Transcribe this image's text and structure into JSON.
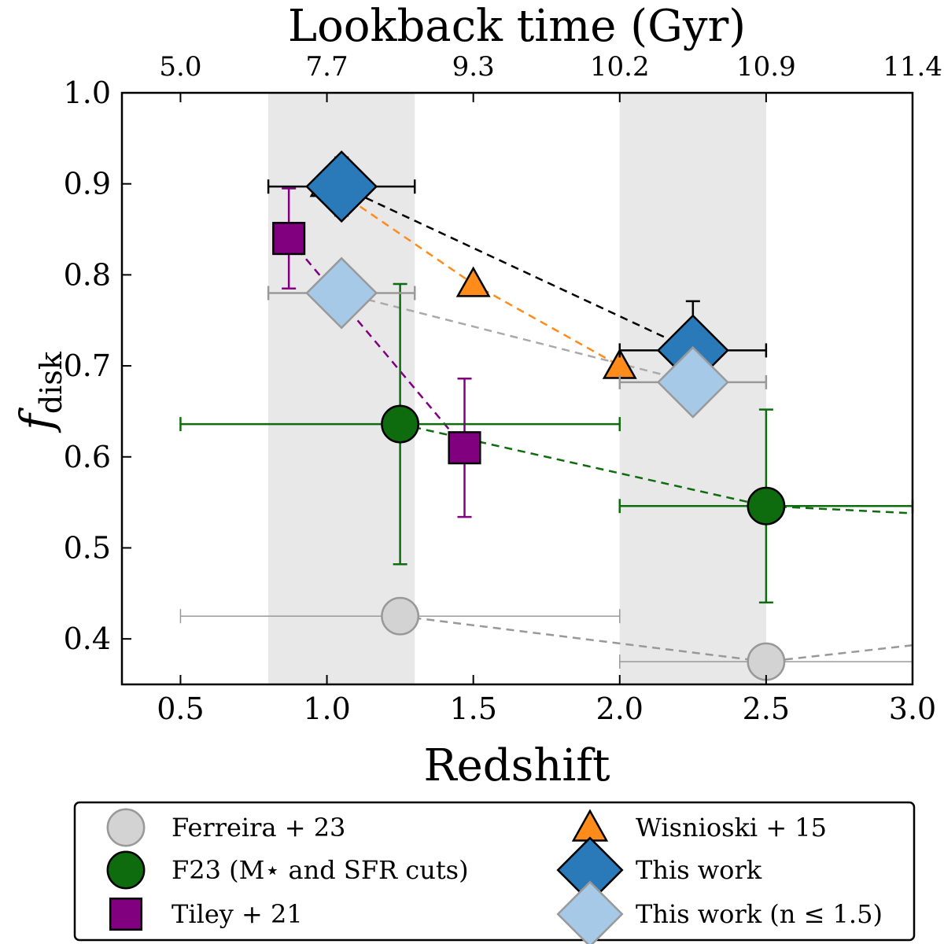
{
  "chart_data": {
    "type": "scatter",
    "xlabel": "Redshift",
    "ylabel_main": "f",
    "ylabel_sub": "disk",
    "top_axis_label": "Lookback time (Gyr)",
    "xlim": [
      0.3,
      3.0
    ],
    "ylim": [
      0.35,
      1.0
    ],
    "x_ticks": [
      0.5,
      1.0,
      1.5,
      2.0,
      2.5,
      3.0
    ],
    "x_tick_labels": [
      "0.5",
      "1.0",
      "1.5",
      "2.0",
      "2.5",
      "3.0"
    ],
    "y_ticks": [
      0.4,
      0.5,
      0.6,
      0.7,
      0.8,
      0.9,
      1.0
    ],
    "y_tick_labels": [
      "0.4",
      "0.5",
      "0.6",
      "0.7",
      "0.8",
      "0.9",
      "1.0"
    ],
    "top_ticks_z": [
      0.5,
      1.0,
      1.5,
      2.0,
      2.5,
      3.0
    ],
    "top_tick_labels": [
      "5.0",
      "7.7",
      "9.3",
      "10.2",
      "10.9",
      "11.4"
    ],
    "shaded_bands": [
      [
        0.8,
        1.3
      ],
      [
        2.0,
        2.5
      ]
    ],
    "grid": false,
    "legend_placement": "below",
    "series": [
      {
        "name": "Ferreira + 23",
        "marker": "circle",
        "color": "#d3d3d3",
        "edge": "#999999",
        "line_color": "#999999",
        "err_color": "#999999",
        "points": [
          {
            "x": 1.25,
            "y": 0.425,
            "xerr": [
              0.75,
              0.75
            ],
            "yerr": [
              0,
              0
            ]
          },
          {
            "x": 2.5,
            "y": 0.375,
            "xerr": [
              0.5,
              0.5
            ],
            "yerr": [
              0,
              0
            ]
          },
          {
            "x": 3.0,
            "y": 0.393,
            "xerr": [
              0,
              0
            ],
            "yerr": [
              0,
              0
            ],
            "line_only": true
          }
        ]
      },
      {
        "name": "F23 (M⋆ and SFR cuts)",
        "marker": "circle",
        "color": "#0e6b0e",
        "edge": "#000000",
        "line_color": "#0e6b0e",
        "err_color": "#0e6b0e",
        "points": [
          {
            "x": 1.25,
            "y": 0.636,
            "xerr": [
              0.75,
              0.75
            ],
            "yerr": [
              0.154,
              0.154
            ]
          },
          {
            "x": 2.5,
            "y": 0.546,
            "xerr": [
              0.5,
              0.5
            ],
            "yerr": [
              0.106,
              0.106
            ]
          },
          {
            "x": 3.0,
            "y": 0.538,
            "xerr": [
              0,
              0
            ],
            "yerr": [
              0,
              0
            ],
            "line_only": true
          }
        ]
      },
      {
        "name": "Tiley + 21",
        "marker": "square",
        "color": "#800080",
        "edge": "#000000",
        "line_color": "#800080",
        "err_color": "#800080",
        "points": [
          {
            "x": 0.87,
            "y": 0.84,
            "xerr": [
              0,
              0
            ],
            "yerr": [
              0.055,
              0.055
            ]
          },
          {
            "x": 1.47,
            "y": 0.61,
            "xerr": [
              0,
              0
            ],
            "yerr": [
              0.076,
              0.076
            ]
          }
        ]
      },
      {
        "name": "Wisnioski + 15",
        "marker": "triangle",
        "color": "#ff8c1a",
        "edge": "#000000",
        "line_color": "#ff8c1a",
        "err_color": "#ff8c1a",
        "points": [
          {
            "x": 1.0,
            "y": 0.9,
            "xerr": [
              0,
              0
            ],
            "yerr": [
              0,
              0
            ]
          },
          {
            "x": 1.5,
            "y": 0.79,
            "xerr": [
              0,
              0
            ],
            "yerr": [
              0,
              0
            ]
          },
          {
            "x": 2.0,
            "y": 0.7,
            "xerr": [
              0,
              0
            ],
            "yerr": [
              0,
              0
            ]
          }
        ]
      },
      {
        "name": "This work",
        "marker": "diamond",
        "color": "#2a7ab9",
        "edge": "#000000",
        "line_color": "#000000",
        "err_color": "#000000",
        "points": [
          {
            "x": 1.05,
            "y": 0.897,
            "xerr": [
              0.25,
              0.25
            ],
            "yerr": [
              0.032,
              0.032
            ]
          },
          {
            "x": 2.25,
            "y": 0.717,
            "xerr": [
              0.25,
              0.25
            ],
            "yerr": [
              0.054,
              0.054
            ]
          }
        ]
      },
      {
        "name": "This work (n ≤ 1.5)",
        "marker": "diamond",
        "color": "#a6c9e8",
        "edge": "#999999",
        "line_color": "#aaaaaa",
        "err_color": "#999999",
        "points": [
          {
            "x": 1.05,
            "y": 0.78,
            "xerr": [
              0.25,
              0.25
            ],
            "yerr": [
              0,
              0
            ]
          },
          {
            "x": 2.25,
            "y": 0.682,
            "xerr": [
              0.25,
              0.25
            ],
            "yerr": [
              0,
              0
            ]
          }
        ]
      }
    ],
    "legend": [
      {
        "series": 0,
        "label": "Ferreira + 23"
      },
      {
        "series": 1,
        "label": "F23 (M⋆ and SFR cuts)"
      },
      {
        "series": 2,
        "label": "Tiley + 21"
      },
      {
        "series": 3,
        "label": "Wisnioski + 15"
      },
      {
        "series": 4,
        "label": "This work"
      },
      {
        "series": 5,
        "label": "This work (n ≤ 1.5)"
      }
    ]
  }
}
